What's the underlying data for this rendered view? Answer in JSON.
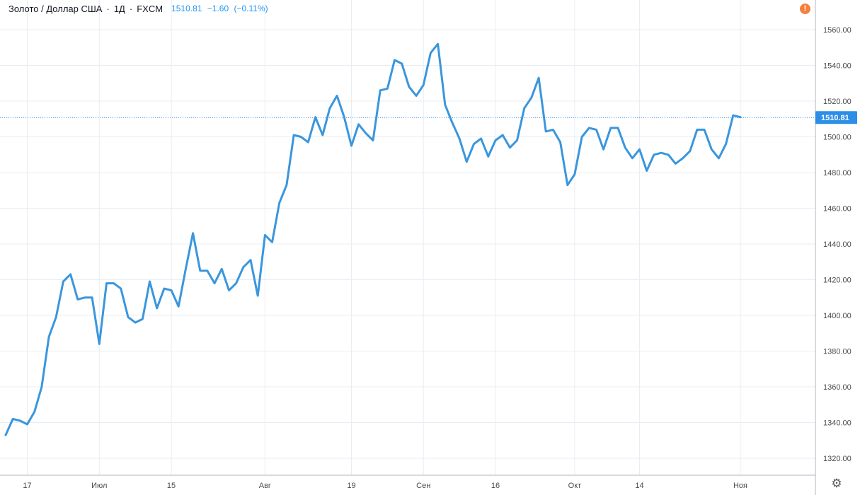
{
  "header": {
    "title": "Золото / Доллар США",
    "interval": "1Д",
    "exchange": "FXCM",
    "price": "1510.81",
    "change": "−1.60",
    "change_pct": "(−0.11%)"
  },
  "colors": {
    "line": "#3a96dd",
    "grid": "#e9edf2",
    "axis_text": "#4a4a4a",
    "price_label_bg": "#2c8ee6",
    "alert_badge": "#f57f3c"
  },
  "icons": {
    "alert": "alert-badge-icon",
    "settings": "gear-icon"
  },
  "alert_symbol": "!",
  "settings_symbol": "⚙",
  "chart_data": {
    "type": "line",
    "title": "",
    "grid": true,
    "ylim": [
      1310,
      1570
    ],
    "y_ticks": [
      1320,
      1340,
      1360,
      1380,
      1400,
      1420,
      1440,
      1460,
      1480,
      1500,
      1520,
      1540,
      1560
    ],
    "y_tick_labels": [
      "1320.00",
      "1340.00",
      "1360.00",
      "1380.00",
      "1400.00",
      "1420.00",
      "1440.00",
      "1460.00",
      "1480.00",
      "1500.00",
      "1520.00",
      "1540.00",
      "1560.00"
    ],
    "x_ticks": [
      {
        "label": "17",
        "i": 3
      },
      {
        "label": "Июл",
        "i": 13
      },
      {
        "label": "15",
        "i": 23
      },
      {
        "label": "Авг",
        "i": 36
      },
      {
        "label": "19",
        "i": 48
      },
      {
        "label": "Сен",
        "i": 58
      },
      {
        "label": "16",
        "i": 68
      },
      {
        "label": "Окт",
        "i": 79
      },
      {
        "label": "14",
        "i": 88
      },
      {
        "label": "Ноя",
        "i": 102
      }
    ],
    "last_price": 1510.81,
    "last_price_label": "1510.81",
    "values": [
      1333,
      1342,
      1341,
      1339,
      1346,
      1360,
      1388,
      1399,
      1419,
      1423,
      1409,
      1410,
      1410,
      1384,
      1418,
      1418,
      1415,
      1399,
      1396,
      1398,
      1419,
      1404,
      1415,
      1414,
      1405,
      1426,
      1446,
      1425,
      1425,
      1418,
      1426,
      1414,
      1418,
      1427,
      1431,
      1411,
      1445,
      1441,
      1463,
      1473,
      1501,
      1500,
      1497,
      1511,
      1501,
      1516,
      1523,
      1511,
      1495,
      1507,
      1502,
      1498,
      1526,
      1527,
      1543,
      1541,
      1528,
      1523,
      1529,
      1547,
      1552,
      1518,
      1508,
      1499,
      1486,
      1496,
      1499,
      1489,
      1498,
      1501,
      1494,
      1498,
      1516,
      1522,
      1533,
      1503,
      1504,
      1497,
      1473,
      1479,
      1500,
      1505,
      1504,
      1493,
      1505,
      1505,
      1494,
      1488,
      1493,
      1481,
      1490,
      1491,
      1490,
      1485,
      1488,
      1492,
      1504,
      1504,
      1493,
      1488,
      1496,
      1512,
      1511
    ]
  }
}
